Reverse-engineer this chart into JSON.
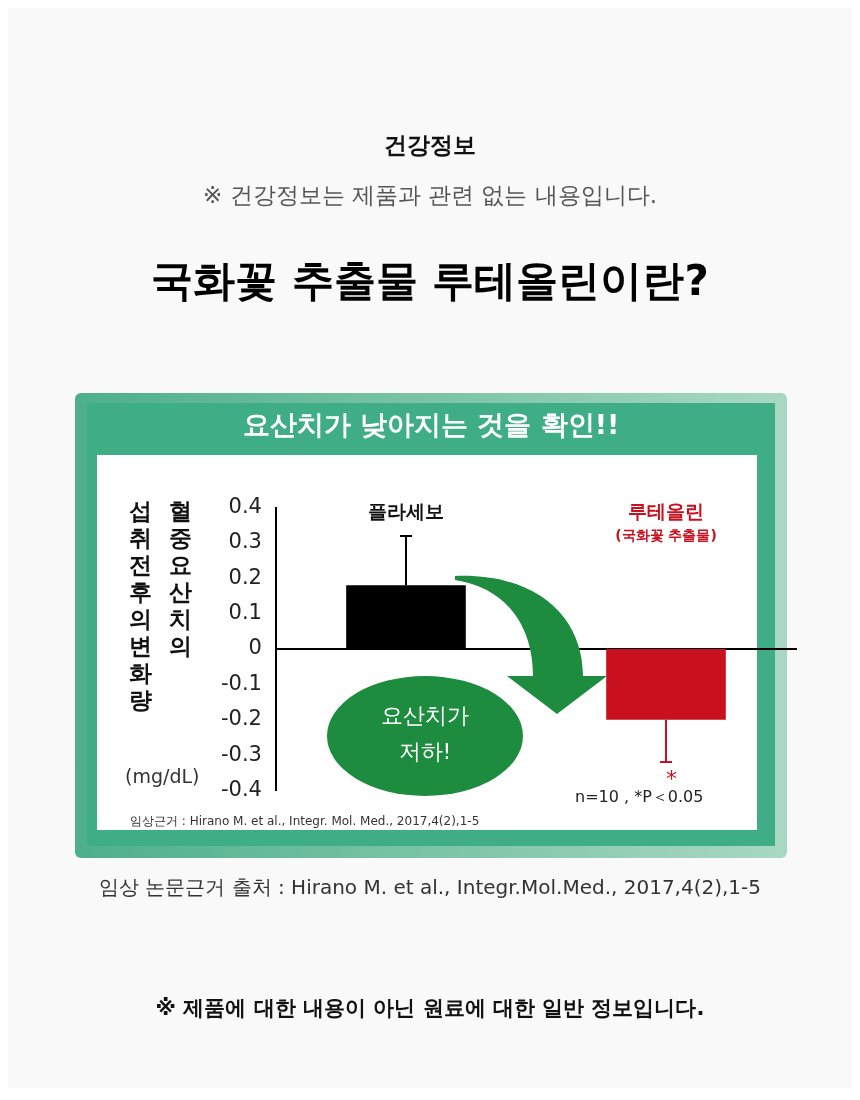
{
  "chart_data": {
    "type": "bar",
    "title": "국화꽃 추출물 루테올린이란?",
    "subtitle": "요산치가 낮아지는 것을 확인!!",
    "ylabel": "혈중요산치의 섭취전후의 변화량",
    "categories": [
      "플라세보",
      "루테올린 (국화꽃 추출물)"
    ],
    "values": [
      0.18,
      -0.2
    ],
    "colors": [
      "#000000",
      "#c8101e"
    ],
    "errors": [
      [
        0.18,
        0.32
      ],
      [
        -0.32,
        -0.2
      ]
    ],
    "ylim": [
      -0.4,
      0.4
    ],
    "yticks": [
      -0.4,
      -0.3,
      -0.2,
      -0.1,
      0,
      0.1,
      0.2,
      0.3,
      0.4
    ],
    "annotations": [
      "건강정보",
      "※ 건강정보는 제품과 관련 없는 내용입니다.",
      "(mg/dL)",
      "*",
      "요산치가 저하!",
      "n=10 , *P＜0.05",
      "임상근거 : Hirano M. et al., Integr. Mol. Med., 2017,4(2),1-5",
      "임상 논문근거 출처 : Hirano M. et al., Integr.Mol.Med., 2017,4(2),1-5",
      "※ 제품에 대한 내용이 아닌 원료에 대한 일반 정보입니다."
    ]
  }
}
